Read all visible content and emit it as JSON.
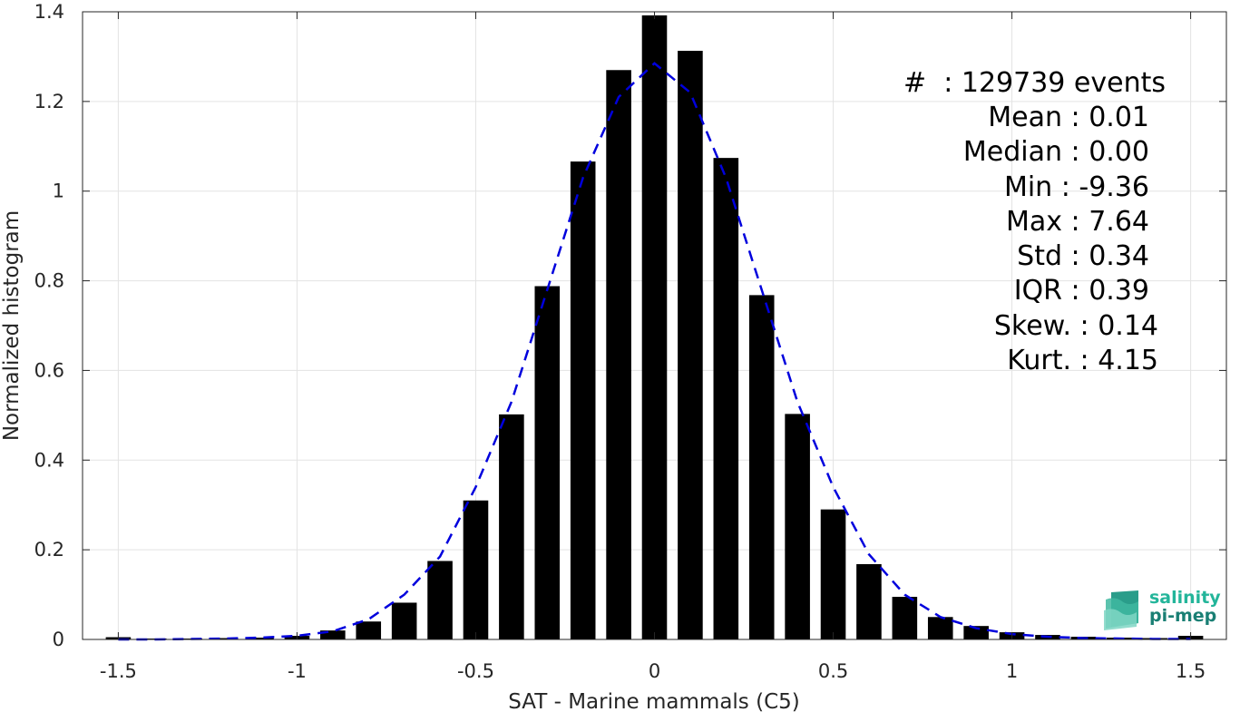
{
  "chart_data": {
    "type": "bar",
    "xlabel": "SAT - Marine mammals (C5)",
    "ylabel": "Normalized histogram",
    "xlim": [
      -1.6,
      1.6
    ],
    "ylim": [
      0,
      1.4
    ],
    "xticks": [
      -1.5,
      -1,
      -0.5,
      0,
      0.5,
      1,
      1.5
    ],
    "xtick_labels": [
      "-1.5",
      "-1",
      "-0.5",
      "0",
      "0.5",
      "1",
      "1.5"
    ],
    "yticks": [
      0,
      0.2,
      0.4,
      0.6,
      0.8,
      1,
      1.2,
      1.4
    ],
    "ytick_labels": [
      "0",
      "0.2",
      "0.4",
      "0.6",
      "0.8",
      "1",
      "1.2",
      "1.4"
    ],
    "grid": true,
    "series": [
      {
        "type": "bar",
        "color": "#000000",
        "x": [
          -1.5,
          -1.4,
          -1.3,
          -1.2,
          -1.1,
          -1.0,
          -0.9,
          -0.8,
          -0.7,
          -0.6,
          -0.5,
          -0.4,
          -0.3,
          -0.2,
          -0.1,
          0.0,
          0.1,
          0.2,
          0.3,
          0.4,
          0.5,
          0.6,
          0.7,
          0.8,
          0.9,
          1.0,
          1.1,
          1.2,
          1.3,
          1.4,
          1.5
        ],
        "values": [
          0.005,
          0.002,
          0.002,
          0.003,
          0.004,
          0.008,
          0.02,
          0.04,
          0.082,
          0.175,
          0.31,
          0.502,
          0.788,
          1.066,
          1.27,
          1.392,
          1.313,
          1.074,
          0.768,
          0.503,
          0.29,
          0.168,
          0.095,
          0.05,
          0.03,
          0.016,
          0.01,
          0.006,
          0.004,
          0.003,
          0.008
        ]
      },
      {
        "type": "line",
        "style": "dashed",
        "color": "#0000dd",
        "x": [
          -1.5,
          -1.4,
          -1.3,
          -1.2,
          -1.1,
          -1.0,
          -0.9,
          -0.8,
          -0.7,
          -0.6,
          -0.5,
          -0.4,
          -0.3,
          -0.2,
          -0.1,
          0.0,
          0.1,
          0.2,
          0.3,
          0.4,
          0.5,
          0.6,
          0.7,
          0.8,
          0.9,
          1.0,
          1.1,
          1.2,
          1.3,
          1.4,
          1.5
        ],
        "values": [
          0.0,
          0.0,
          0.001,
          0.002,
          0.004,
          0.008,
          0.018,
          0.045,
          0.1,
          0.185,
          0.34,
          0.53,
          0.78,
          1.03,
          1.21,
          1.285,
          1.22,
          1.03,
          0.78,
          0.53,
          0.34,
          0.19,
          0.1,
          0.05,
          0.025,
          0.012,
          0.006,
          0.003,
          0.002,
          0.001,
          0.001
        ]
      }
    ]
  },
  "stats": {
    "events": "#  : 129739 events",
    "mean": "Mean : 0.01",
    "median": "Median : 0.00",
    "min": "Min : -9.36",
    "max": "Max : 7.64",
    "std": "Std : 0.34",
    "iqr": "IQR : 0.39",
    "skew": "Skew. : 0.14",
    "kurt": "Kurt. : 4.15"
  },
  "logo": {
    "line1": "salinity",
    "line2": "pi-mep",
    "color1": "#23b59a",
    "color2": "#1a7f74"
  }
}
